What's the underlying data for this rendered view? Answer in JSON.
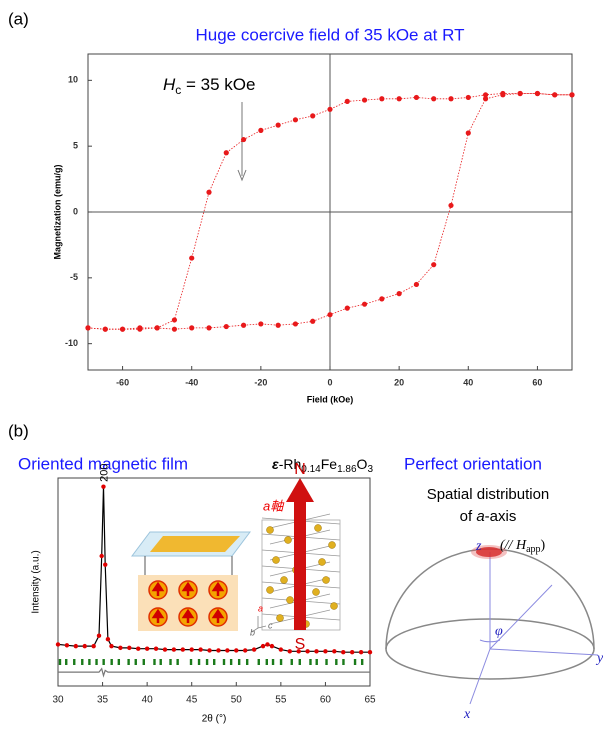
{
  "panel_labels": [
    "(a)",
    "(b)"
  ],
  "chart_data": [
    {
      "type": "line",
      "title": "Huge coercive field of 35 kOe at RT",
      "annotation": {
        "symbol": "H",
        "subscript": "c",
        "text": " = 35 kOe"
      },
      "xlabel": "Field (kOe)",
      "ylabel": "Magnetization (emu/g)",
      "x": [
        -70,
        -65,
        -60,
        -55,
        -50,
        -45,
        -40,
        -35,
        -30,
        -25,
        -20,
        -15,
        -10,
        -5,
        0,
        5,
        10,
        15,
        20,
        25,
        30,
        35,
        40,
        45,
        50,
        55,
        60,
        65,
        70
      ],
      "series": [
        {
          "color": "#e8191b",
          "marker": true,
          "line_color": "#e8191b",
          "values": [
            -8.8,
            -8.9,
            -8.9,
            -8.9,
            -8.8,
            -8.2,
            -3.5,
            1.5,
            4.5,
            5.5,
            6.2,
            6.6,
            7.0,
            7.3,
            7.8,
            8.4,
            8.5,
            8.6,
            8.6,
            8.7,
            8.6,
            8.6,
            8.7,
            8.9,
            9.0,
            9.0,
            9.0,
            8.9,
            8.9
          ]
        },
        {
          "color": "#e8191b",
          "marker": true,
          "line_color": "#e8191b",
          "values": [
            -8.8,
            -8.9,
            -8.9,
            -8.8,
            -8.8,
            -8.9,
            -8.8,
            -8.8,
            -8.7,
            -8.6,
            -8.5,
            -8.6,
            -8.5,
            -8.3,
            -7.8,
            -7.3,
            -7.0,
            -6.6,
            -6.2,
            -5.5,
            -4.0,
            0.5,
            6.0,
            8.6,
            8.9,
            9.0,
            9.0,
            8.9,
            8.9
          ]
        }
      ],
      "xlim": [
        -70,
        70
      ],
      "ylim": [
        -12,
        12
      ],
      "xticks": [
        -60,
        -40,
        -20,
        0,
        20,
        40,
        60
      ],
      "yticks": [
        -10,
        -5,
        0,
        5,
        10
      ],
      "zero_lines": true
    },
    {
      "type": "line",
      "title": "Oriented magnetic film",
      "formula": [
        "ε",
        "-Rh",
        "0.14",
        "Fe",
        "1.86",
        "O",
        "3"
      ],
      "peak_label": "200",
      "xlabel": "2θ (°)",
      "ylabel": "Intensity (a.u.)",
      "x": [
        30,
        31,
        32,
        33,
        34,
        34.6,
        34.9,
        35.1,
        35.3,
        35.6,
        36,
        37,
        38,
        39,
        40,
        41,
        42,
        43,
        44,
        45,
        46,
        47,
        48,
        49,
        50,
        51,
        52,
        53,
        53.5,
        54,
        55,
        56,
        57,
        58,
        59,
        60,
        61,
        62,
        63,
        64,
        65
      ],
      "series": [
        {
          "color": "#e00000",
          "marker": true,
          "line_color": "#000000",
          "values": [
            9,
            8.5,
            8,
            8,
            8,
            14,
            60,
            100,
            55,
            12,
            8,
            7,
            7,
            6.5,
            6.5,
            6.5,
            6,
            6,
            6,
            6,
            6,
            5.5,
            5.5,
            5.5,
            5.5,
            5.5,
            6,
            8,
            9,
            8,
            6,
            5,
            5,
            5,
            5,
            5,
            5,
            4.5,
            4.5,
            4.5,
            4.5
          ]
        },
        {
          "color": "#777777",
          "marker": false,
          "line_color": "#777777",
          "values": [
            -7,
            -7,
            -7,
            -7,
            -7,
            -7,
            -5,
            -9,
            -6,
            -7,
            -7,
            -7,
            -7,
            -7,
            -7,
            -7,
            -7,
            -7,
            -7,
            -7,
            -7,
            -7,
            -7,
            -7,
            -7,
            -7,
            -7,
            -7,
            -7,
            -7,
            -7,
            -7,
            -7,
            -7,
            -7,
            -7,
            -7,
            -7,
            -7,
            -7,
            -7
          ]
        }
      ],
      "reflections": [
        30.2,
        30.9,
        31.8,
        32.7,
        33.5,
        34.3,
        35.1,
        36.0,
        36.8,
        37.9,
        38.7,
        39.6,
        40.8,
        41.5,
        42.6,
        43.4,
        44.9,
        45.8,
        46.7,
        47.5,
        48.6,
        49.4,
        50.3,
        51.2,
        52.5,
        53.4,
        54.1,
        55.0,
        56.2,
        57.1,
        58.3,
        59.0,
        60.1,
        61.2,
        62.0,
        63.3,
        64.1
      ],
      "reflection_color": "#1a7a1a",
      "xlim": [
        30,
        65
      ],
      "ylim": [
        -15,
        105
      ],
      "xticks": [
        30,
        35,
        40,
        45,
        50,
        55,
        60,
        65
      ]
    }
  ],
  "inset": {
    "north": "N",
    "south": "S",
    "axis_label": "a軸",
    "crystal_axes": [
      "a",
      "b",
      "c"
    ]
  },
  "orientation": {
    "title": "Perfect orientation",
    "caption_line1": "Spatial distribution",
    "caption_line2": [
      "of ",
      "a",
      "-axis"
    ],
    "z": "z",
    "field": [
      "(// ",
      "H",
      "app",
      ")"
    ],
    "phi": "φ",
    "x": "x",
    "y": "y"
  }
}
